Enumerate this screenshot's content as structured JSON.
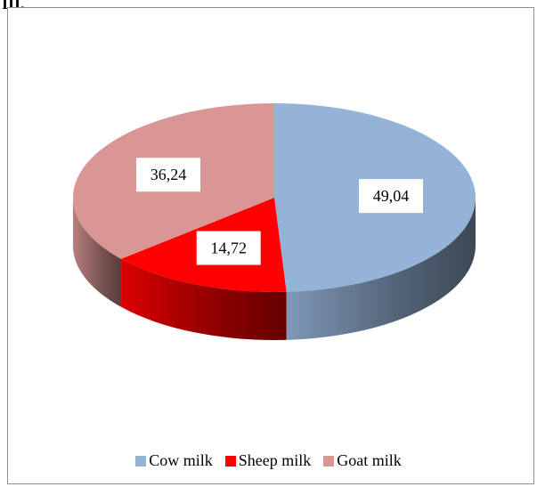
{
  "corner_label": "III.",
  "chart_data": {
    "type": "pie",
    "title": "",
    "slices": [
      {
        "label": "Cow milk",
        "value": 49.04,
        "display": "49,04",
        "color": "#95b3d7"
      },
      {
        "label": "Sheep milk",
        "value": 14.72,
        "display": "14,72",
        "color": "#ff0000"
      },
      {
        "label": "Goat milk",
        "value": 36.24,
        "display": "36,24",
        "color": "#d99694"
      }
    ],
    "legend_position": "bottom",
    "style": "3d"
  }
}
